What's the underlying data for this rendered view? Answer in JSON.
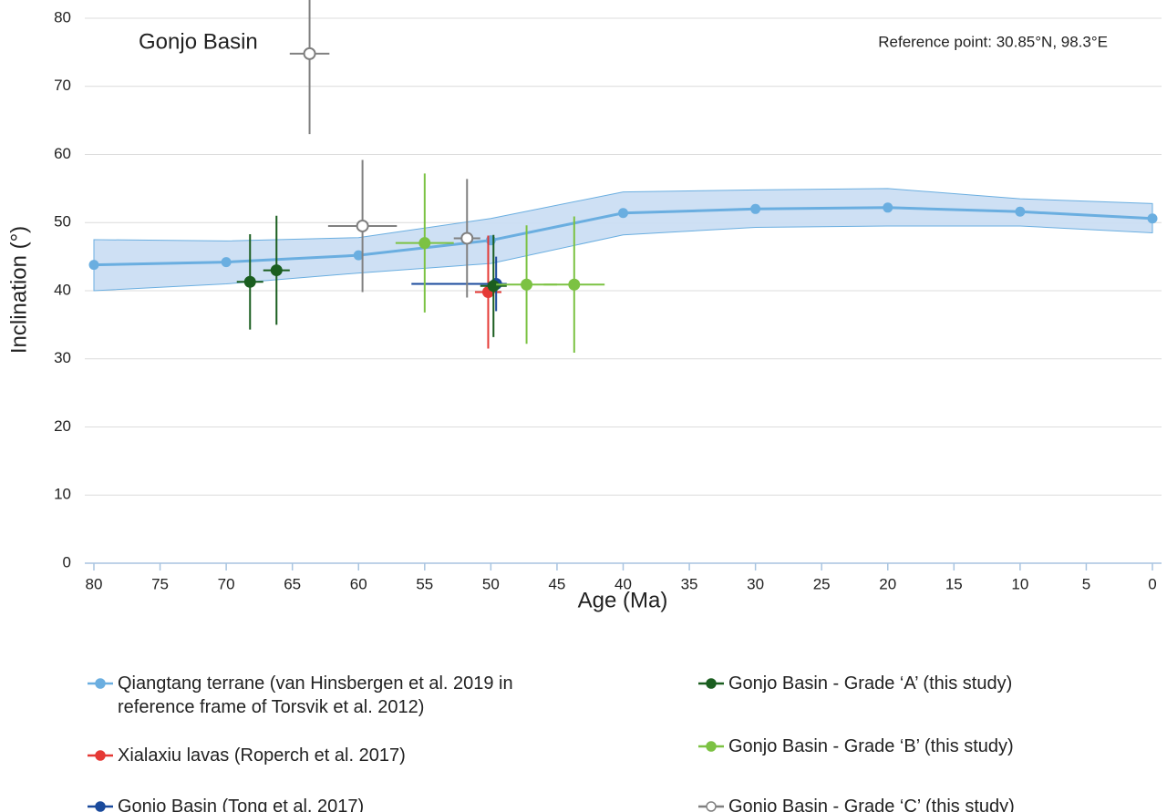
{
  "chart_data": {
    "type": "errorbar",
    "x_label": "Age (Ma)",
    "y_label": "Inclination (°)",
    "annotations": [
      "Gonjo Basin",
      "Reference point: 30.85°N, 98.3°E"
    ],
    "xlim": [
      80,
      0
    ],
    "xticks": [
      80,
      75,
      70,
      65,
      60,
      55,
      50,
      45,
      40,
      35,
      30,
      25,
      20,
      15,
      10,
      5,
      0
    ],
    "ylim": [
      0,
      80
    ],
    "yticks": [
      0,
      10,
      20,
      30,
      40,
      50,
      60,
      70,
      80
    ],
    "grid": true,
    "series": [
      {
        "name": "Qiangtang terrane (van Hinsbergen et al. 2019 in reference frame of Torsvik et al. 2012)",
        "type": "line",
        "color": "#6aaee0",
        "band_color": "#c9ddf3",
        "x": [
          80,
          70,
          60,
          50,
          40,
          30,
          20,
          10,
          0
        ],
        "values": [
          43.8,
          44.2,
          45.2,
          47.4,
          51.4,
          52,
          52.2,
          51.6,
          50.6
        ],
        "band_lower": [
          40,
          41,
          42.6,
          44,
          48.2,
          49.3,
          49.5,
          49.5,
          48.5
        ],
        "band_upper": [
          47.5,
          47.3,
          47.8,
          50.6,
          54.5,
          54.8,
          55,
          53.5,
          52.8
        ]
      },
      {
        "name": "Xialaxiu lavas (Roperch et al. 2017)",
        "type": "errorbar",
        "color": "#e53935",
        "marker": "filled",
        "x": [
          50.2
        ],
        "values": [
          39.8
        ],
        "xerr": [
          [
            1,
            1
          ]
        ],
        "yerr": [
          8.3
        ]
      },
      {
        "name": "Gonjo Basin (Tong et al. 2017)",
        "type": "errorbar",
        "color": "#1a4a9c",
        "marker": "filled",
        "x": [
          49.6
        ],
        "values": [
          41
        ],
        "xerr": [
          [
            6.4,
            0.8
          ]
        ],
        "yerr": [
          4
        ]
      },
      {
        "name": "Gonjo Basin - Grade ‘A’ (this study)",
        "type": "errorbar",
        "color": "#1b5e20",
        "marker": "filled",
        "x": [
          68.2,
          66.2,
          49.8
        ],
        "values": [
          41.3,
          43,
          40.7
        ],
        "xerr": [
          [
            1,
            1
          ],
          [
            1,
            1
          ],
          [
            1,
            1
          ]
        ],
        "yerr": [
          7,
          8,
          7.5
        ]
      },
      {
        "name": "Gonjo Basin - Grade ‘B’ (this study)",
        "type": "errorbar",
        "color": "#7cc243",
        "marker": "filled",
        "x": [
          55,
          47.3,
          43.7
        ],
        "values": [
          47,
          40.9,
          40.9
        ],
        "xerr": [
          [
            2.2,
            2.2
          ],
          [
            2.3,
            2.3
          ],
          [
            2.3,
            2.3
          ]
        ],
        "yerr": [
          10.2,
          8.7,
          10
        ]
      },
      {
        "name": "Gonjo Basin - Grade ‘C’ (this study)",
        "type": "errorbar",
        "color": "#808080",
        "marker": "open",
        "x": [
          63.7,
          59.7,
          51.8
        ],
        "values": [
          74.8,
          49.5,
          47.7
        ],
        "xerr": [
          [
            1.5,
            1.5
          ],
          [
            2.6,
            2.6
          ],
          [
            1,
            1
          ]
        ],
        "yerr": [
          11.8,
          9.7,
          8.7
        ]
      }
    ]
  }
}
